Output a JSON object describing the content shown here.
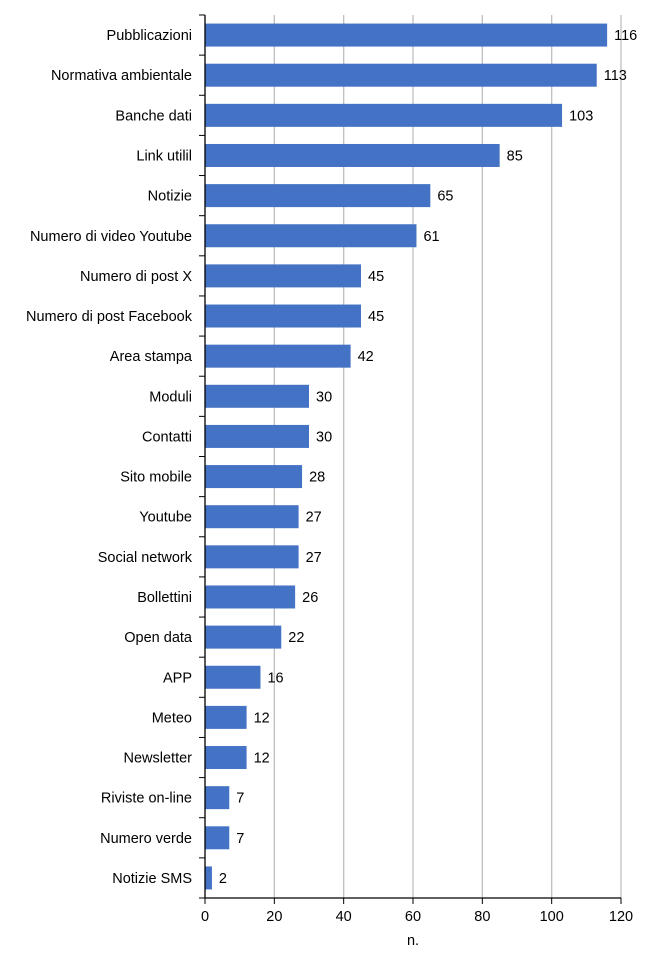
{
  "chart_data": {
    "type": "bar",
    "orientation": "horizontal",
    "title": "",
    "xlabel": "n.",
    "ylabel": "",
    "xlim": [
      0,
      120
    ],
    "xticks": [
      0,
      20,
      40,
      60,
      80,
      100,
      120
    ],
    "grid": "vertical",
    "bar_color": "#4472C4",
    "categories": [
      "Pubblicazioni",
      "Normativa ambientale",
      "Banche dati",
      "Link utilil",
      "Notizie",
      "Numero di video Youtube",
      "Numero di post X",
      "Numero di post Facebook",
      "Area stampa",
      "Moduli",
      "Contatti",
      "Sito mobile",
      "Youtube",
      "Social network",
      "Bollettini",
      "Open data",
      "APP",
      "Meteo",
      "Newsletter",
      "Riviste on-line",
      "Numero verde",
      "Notizie SMS"
    ],
    "values": [
      116,
      113,
      103,
      85,
      65,
      61,
      45,
      45,
      42,
      30,
      30,
      28,
      27,
      27,
      26,
      22,
      16,
      12,
      12,
      7,
      7,
      2
    ]
  }
}
